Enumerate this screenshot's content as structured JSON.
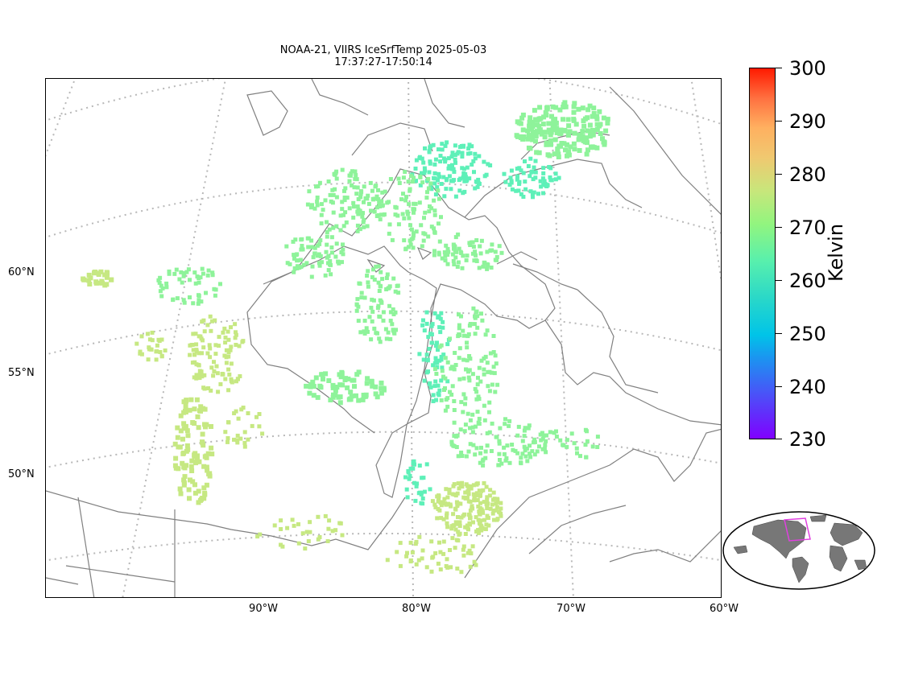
{
  "title_line1": "NOAA-21, VIIRS IceSrfTemp 2025-05-03",
  "title_line2": "17:37:27-17:50:14",
  "lat_labels": [
    "60°N",
    "55°N",
    "50°N"
  ],
  "lon_labels": [
    "90°W",
    "80°W",
    "70°W",
    "60°W"
  ],
  "colorbar": {
    "unit": "Kelvin",
    "ticks": [
      "300",
      "290",
      "280",
      "270",
      "260",
      "250",
      "240",
      "230"
    ],
    "min": 230,
    "max": 300,
    "colors": [
      "#8000ff",
      "#00c4e8",
      "#58f0ad",
      "#c8e67b",
      "#ff1a00"
    ]
  },
  "colors": {
    "coast": "#808080",
    "grid": "#b8b8b8",
    "warm_pixels": "#c6e882",
    "mid_pixels": "#8ef39a",
    "cold_pixels": "#5ef0b8",
    "inset_land": "#777777",
    "inset_box": "#e040e0"
  }
}
